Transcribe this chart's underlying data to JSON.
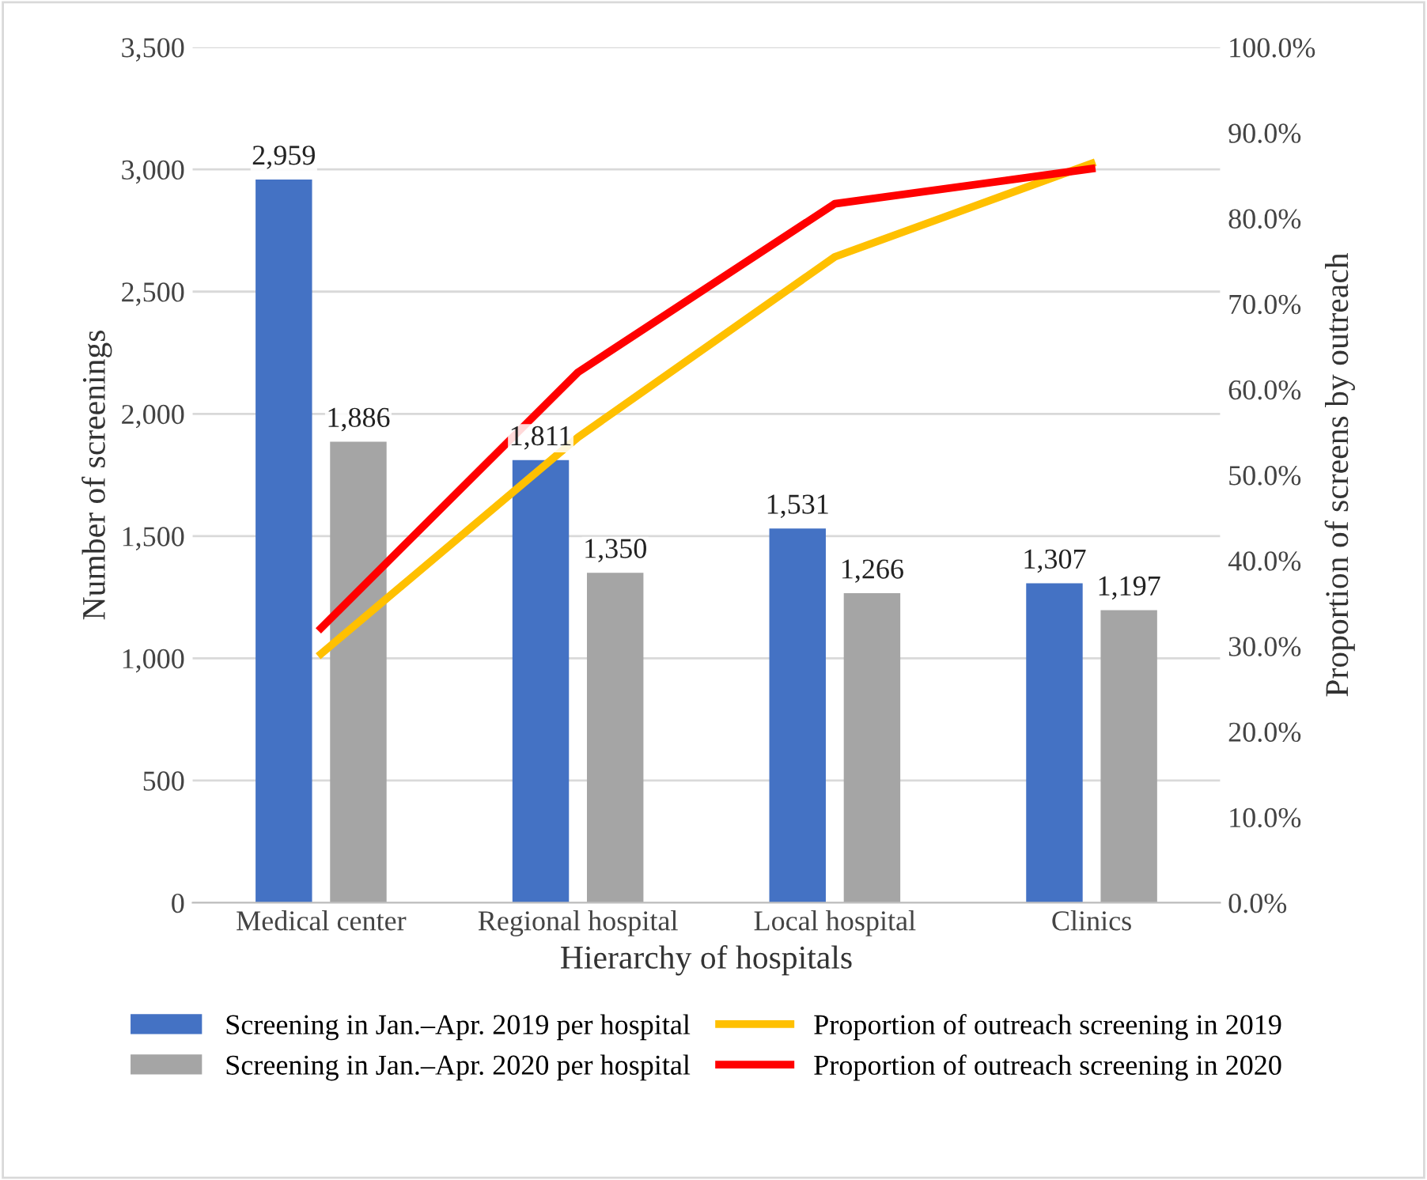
{
  "chart_data": {
    "type": "bar",
    "xlabel": "Hierarchy of hospitals",
    "ylabel": "Number of screenings",
    "y2label": "Proportion of screens by outreach",
    "categories": [
      "Medical center",
      "Regional hospital",
      "Local hospital",
      "Clinics"
    ],
    "series": [
      {
        "name": "Screening in Jan.–Apr. 2019 per hospital",
        "color": "#4472c4",
        "values": [
          2959,
          1811,
          1531,
          1307
        ],
        "value_labels": [
          "2,959",
          "1,811",
          "1,531",
          "1,307"
        ]
      },
      {
        "name": "Screening in Jan.–Apr. 2020 per hospital",
        "color": "#a5a5a5",
        "values": [
          1886,
          1350,
          1266,
          1197
        ],
        "value_labels": [
          "1,886",
          "1,350",
          "1,266",
          "1,197"
        ]
      },
      {
        "name": "Proportion of outreach screening in 2019",
        "type": "line",
        "axis": "y2",
        "color": "#ffc000",
        "values": [
          29.1,
          54.4,
          75.5,
          86.4
        ]
      },
      {
        "name": "Proportion of outreach screening in 2020",
        "type": "line",
        "axis": "y2",
        "color": "#ff0000",
        "values": [
          32.1,
          62.0,
          81.7,
          85.8
        ]
      }
    ],
    "ylim": [
      0,
      3500
    ],
    "yticks": [
      {
        "value": 0,
        "label": "0"
      },
      {
        "value": 500,
        "label": "500"
      },
      {
        "value": 1000,
        "label": "1,000"
      },
      {
        "value": 1500,
        "label": "1,500"
      },
      {
        "value": 2000,
        "label": "2,000"
      },
      {
        "value": 2500,
        "label": "2,500"
      },
      {
        "value": 3000,
        "label": "3,000"
      },
      {
        "value": 3500,
        "label": "3,500"
      }
    ],
    "y2lim": [
      0,
      100
    ],
    "y2ticks": [
      {
        "value": 0,
        "label": "0.0%"
      },
      {
        "value": 10,
        "label": "10.0%"
      },
      {
        "value": 20,
        "label": "20.0%"
      },
      {
        "value": 30,
        "label": "30.0%"
      },
      {
        "value": 40,
        "label": "40.0%"
      },
      {
        "value": 50,
        "label": "50.0%"
      },
      {
        "value": 60,
        "label": "60.0%"
      },
      {
        "value": 70,
        "label": "70.0%"
      },
      {
        "value": 80,
        "label": "80.0%"
      },
      {
        "value": 90,
        "label": "90.0%"
      },
      {
        "value": 100,
        "label": "100.0%"
      }
    ],
    "grid": "y",
    "legend": "bottom",
    "marker": "none",
    "line_style": "solid"
  }
}
